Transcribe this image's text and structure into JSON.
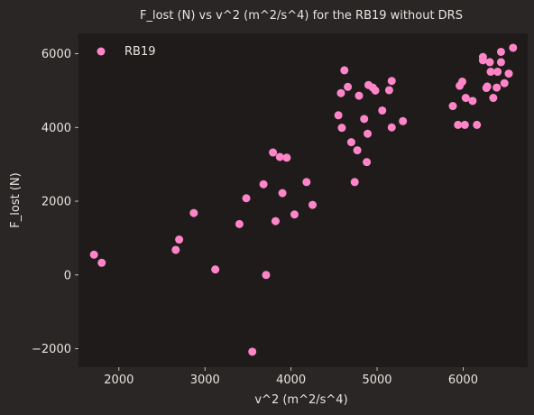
{
  "chart_data": {
    "type": "scatter",
    "title": "F_lost (N) vs v^2 (m^2/s^4) for the RB19 without DRS",
    "xlabel": "v^2 (m^2/s^4)",
    "ylabel": "F_lost (N)",
    "xlim": [
      1530,
      6750
    ],
    "ylim": [
      -2500,
      6550
    ],
    "xticks": [
      2000,
      3000,
      4000,
      5000,
      6000
    ],
    "yticks": [
      -2000,
      0,
      2000,
      4000,
      6000
    ],
    "grid": false,
    "legend_position": "top-left",
    "colors": {
      "figure_background": "#292625",
      "plot_background": "#1e1b1a",
      "marker": "#ff85c8",
      "text": "#e8e4df"
    },
    "series": [
      {
        "name": "RB19",
        "points": [
          [
            1710,
            550
          ],
          [
            1800,
            330
          ],
          [
            2660,
            680
          ],
          [
            2700,
            960
          ],
          [
            2870,
            1680
          ],
          [
            3120,
            150
          ],
          [
            3400,
            1380
          ],
          [
            3480,
            2080
          ],
          [
            3550,
            -2080
          ],
          [
            3680,
            2460
          ],
          [
            3710,
            0
          ],
          [
            3790,
            3320
          ],
          [
            3820,
            1460
          ],
          [
            3870,
            3200
          ],
          [
            3900,
            2220
          ],
          [
            3950,
            3180
          ],
          [
            4040,
            1640
          ],
          [
            4180,
            2520
          ],
          [
            4250,
            1900
          ],
          [
            4550,
            4330
          ],
          [
            4580,
            4930
          ],
          [
            4590,
            3990
          ],
          [
            4620,
            5550
          ],
          [
            4660,
            5100
          ],
          [
            4700,
            3600
          ],
          [
            4740,
            2520
          ],
          [
            4770,
            3380
          ],
          [
            4790,
            4860
          ],
          [
            4850,
            4230
          ],
          [
            4880,
            3060
          ],
          [
            4890,
            3830
          ],
          [
            4900,
            5150
          ],
          [
            4950,
            5080
          ],
          [
            4980,
            5000
          ],
          [
            5060,
            4460
          ],
          [
            5140,
            5010
          ],
          [
            5170,
            5260
          ],
          [
            5170,
            4000
          ],
          [
            5300,
            4170
          ],
          [
            5880,
            4580
          ],
          [
            5940,
            4070
          ],
          [
            5960,
            5130
          ],
          [
            5990,
            5240
          ],
          [
            6020,
            4070
          ],
          [
            6030,
            4800
          ],
          [
            6110,
            4720
          ],
          [
            6160,
            4070
          ],
          [
            6230,
            5910
          ],
          [
            6230,
            5820
          ],
          [
            6270,
            5070
          ],
          [
            6280,
            5110
          ],
          [
            6310,
            5770
          ],
          [
            6320,
            5510
          ],
          [
            6350,
            4800
          ],
          [
            6390,
            5080
          ],
          [
            6400,
            5510
          ],
          [
            6440,
            6050
          ],
          [
            6440,
            5770
          ],
          [
            6480,
            5200
          ],
          [
            6530,
            5460
          ],
          [
            6580,
            6160
          ]
        ]
      }
    ]
  }
}
